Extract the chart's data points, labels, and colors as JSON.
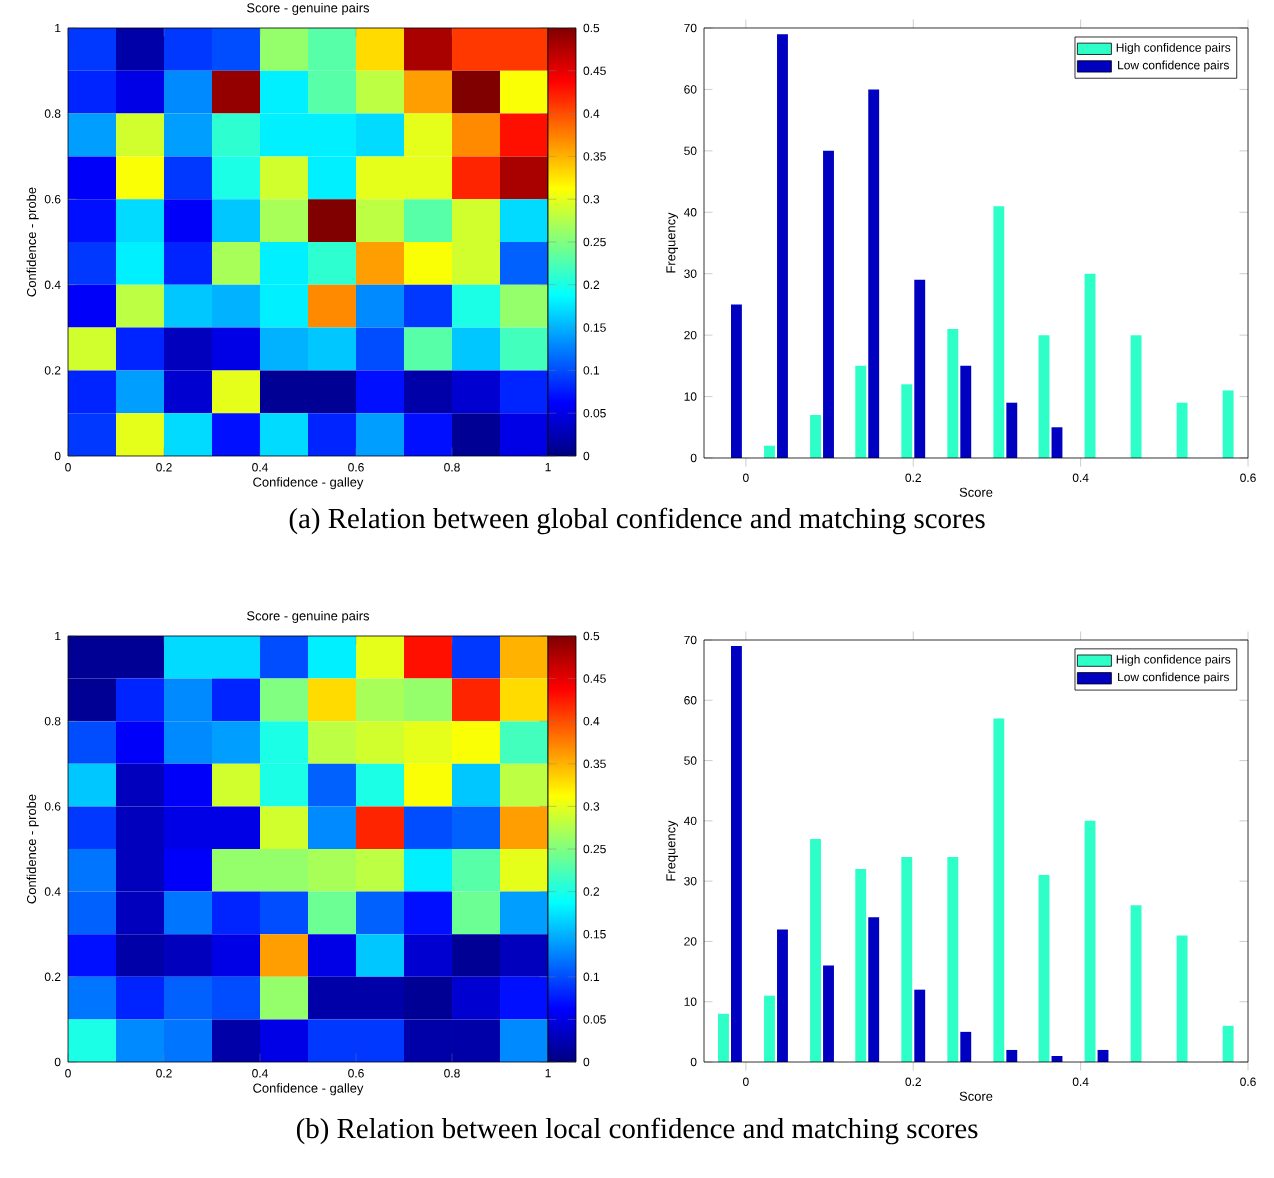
{
  "chart_data": [
    {
      "type": "heatmap",
      "title": "Score - genuine pairs",
      "xlabel": "Confidence - galley",
      "ylabel": "Confidence - probe",
      "xlim": [
        0,
        1
      ],
      "ylim": [
        0,
        1
      ],
      "xticks": [
        0,
        0.2,
        0.4,
        0.6,
        0.8,
        1
      ],
      "yticks": [
        0,
        0.2,
        0.4,
        0.6,
        0.8,
        1
      ],
      "clim": [
        0,
        0.5
      ],
      "cticks": [
        0,
        0.05,
        0.1,
        0.15,
        0.2,
        0.25,
        0.3,
        0.35,
        0.4,
        0.45,
        0.5
      ],
      "cells": [
        [
          0.09,
          0.02,
          0.09,
          0.1,
          0.26,
          0.23,
          0.33,
          0.48,
          0.41,
          0.41
        ],
        [
          0.08,
          0.05,
          0.13,
          0.49,
          0.18,
          0.23,
          0.28,
          0.36,
          0.5,
          0.31
        ],
        [
          0.14,
          0.29,
          0.14,
          0.21,
          0.18,
          0.18,
          0.17,
          0.3,
          0.37,
          0.43
        ],
        [
          0.06,
          0.31,
          0.09,
          0.2,
          0.29,
          0.18,
          0.3,
          0.3,
          0.42,
          0.48
        ],
        [
          0.07,
          0.17,
          0.06,
          0.16,
          0.27,
          0.5,
          0.28,
          0.23,
          0.29,
          0.17
        ],
        [
          0.09,
          0.18,
          0.08,
          0.27,
          0.18,
          0.21,
          0.36,
          0.31,
          0.29,
          0.11
        ],
        [
          0.06,
          0.28,
          0.16,
          0.15,
          0.18,
          0.37,
          0.13,
          0.09,
          0.2,
          0.26
        ],
        [
          0.29,
          0.08,
          0.03,
          0.05,
          0.15,
          0.16,
          0.1,
          0.23,
          0.16,
          0.22
        ],
        [
          0.08,
          0.14,
          0.04,
          0.3,
          0.01,
          0.01,
          0.07,
          0.02,
          0.04,
          0.08
        ],
        [
          0.09,
          0.3,
          0.17,
          0.07,
          0.17,
          0.08,
          0.14,
          0.07,
          0.01,
          0.05
        ]
      ],
      "annotations": [
        "(a) Relation between global confidence and matching scores"
      ]
    },
    {
      "type": "bar",
      "xlabel": "Score",
      "ylabel": "Frequency",
      "xlim": [
        -0.05,
        0.6
      ],
      "ylim": [
        0,
        70
      ],
      "xticks": [
        0,
        0.2,
        0.4,
        0.6
      ],
      "yticks": [
        0,
        10,
        20,
        30,
        40,
        50,
        60,
        70
      ],
      "legend": "top right",
      "x": [
        -0.019,
        0.036,
        0.091,
        0.145,
        0.2,
        0.255,
        0.31,
        0.364,
        0.419,
        0.474,
        0.529,
        0.584
      ],
      "series": [
        {
          "name": "High confidence pairs",
          "color": "#2effc8",
          "values": [
            0,
            2,
            7,
            15,
            12,
            21,
            41,
            20,
            30,
            20,
            9,
            11
          ]
        },
        {
          "name": "Low confidence pairs",
          "color": "#0000c0",
          "values": [
            25,
            69,
            50,
            60,
            29,
            15,
            9,
            5,
            0,
            0,
            0,
            0
          ]
        }
      ]
    },
    {
      "type": "heatmap",
      "title": "Score - genuine pairs",
      "xlabel": "Confidence - galley",
      "ylabel": "Confidence - probe",
      "xlim": [
        0,
        1
      ],
      "ylim": [
        0,
        1
      ],
      "xticks": [
        0,
        0.2,
        0.4,
        0.6,
        0.8,
        1
      ],
      "yticks": [
        0,
        0.2,
        0.4,
        0.6,
        0.8,
        1
      ],
      "clim": [
        0,
        0.5
      ],
      "cticks": [
        0,
        0.05,
        0.1,
        0.15,
        0.2,
        0.25,
        0.3,
        0.35,
        0.4,
        0.45,
        0.5
      ],
      "cells": [
        [
          0.01,
          0.01,
          0.17,
          0.17,
          0.1,
          0.18,
          0.3,
          0.43,
          0.09,
          0.35
        ],
        [
          0.01,
          0.08,
          0.13,
          0.08,
          0.25,
          0.33,
          0.27,
          0.26,
          0.42,
          0.33
        ],
        [
          0.1,
          0.06,
          0.13,
          0.14,
          0.2,
          0.28,
          0.29,
          0.3,
          0.31,
          0.22
        ],
        [
          0.16,
          0.03,
          0.06,
          0.29,
          0.2,
          0.11,
          0.2,
          0.31,
          0.16,
          0.28
        ],
        [
          0.09,
          0.03,
          0.05,
          0.05,
          0.29,
          0.13,
          0.42,
          0.1,
          0.11,
          0.36
        ],
        [
          0.12,
          0.03,
          0.06,
          0.26,
          0.26,
          0.27,
          0.28,
          0.18,
          0.23,
          0.3
        ],
        [
          0.11,
          0.03,
          0.12,
          0.08,
          0.1,
          0.24,
          0.11,
          0.07,
          0.24,
          0.14
        ],
        [
          0.07,
          0.02,
          0.03,
          0.05,
          0.36,
          0.05,
          0.16,
          0.04,
          0.01,
          0.03
        ],
        [
          0.12,
          0.08,
          0.11,
          0.1,
          0.26,
          0.02,
          0.02,
          0.01,
          0.04,
          0.07
        ],
        [
          0.2,
          0.13,
          0.12,
          0.02,
          0.05,
          0.09,
          0.09,
          0.02,
          0.02,
          0.13
        ]
      ],
      "annotations": [
        "(b) Relation between local confidence and matching scores"
      ]
    },
    {
      "type": "bar",
      "xlabel": "Score",
      "ylabel": "Frequency",
      "xlim": [
        -0.05,
        0.6
      ],
      "ylim": [
        0,
        70
      ],
      "xticks": [
        0,
        0.2,
        0.4,
        0.6
      ],
      "yticks": [
        0,
        10,
        20,
        30,
        40,
        50,
        60,
        70
      ],
      "legend": "top right",
      "x": [
        -0.019,
        0.036,
        0.091,
        0.145,
        0.2,
        0.255,
        0.31,
        0.364,
        0.419,
        0.474,
        0.529,
        0.584
      ],
      "series": [
        {
          "name": "High confidence pairs",
          "color": "#2effc8",
          "values": [
            8,
            11,
            37,
            32,
            34,
            34,
            57,
            31,
            40,
            26,
            21,
            6
          ]
        },
        {
          "name": "Low confidence pairs",
          "color": "#0000c0",
          "values": [
            69,
            22,
            16,
            24,
            12,
            5,
            2,
            1,
            2,
            0,
            0,
            0
          ]
        }
      ]
    }
  ]
}
